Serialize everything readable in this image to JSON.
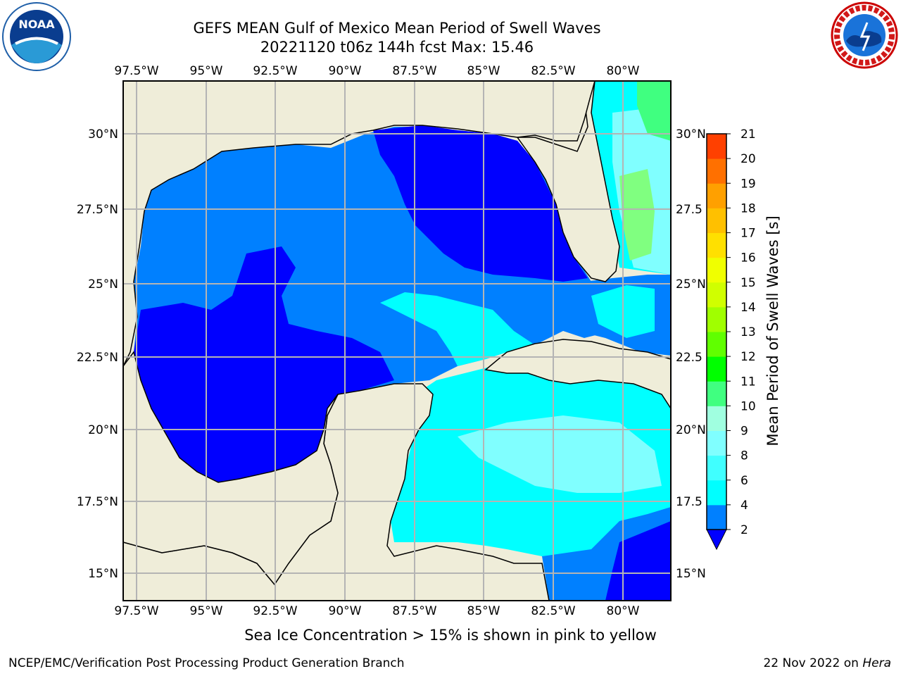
{
  "title": {
    "line1": "GEFS MEAN Gulf of Mexico Mean Period of Swell Waves",
    "line2": "20221120 t06z 144h fcst   Max: 15.46"
  },
  "map": {
    "lon_ticks": [
      "97.5°W",
      "95°W",
      "92.5°W",
      "90°W",
      "87.5°W",
      "85°W",
      "82.5°W",
      "80°W"
    ],
    "lat_ticks_left": [
      "30°N",
      "27.5°N",
      "25°N",
      "22.5°N",
      "20°N",
      "17.5°N",
      "15°N"
    ],
    "lat_ticks_right": [
      "30°N",
      "27.5",
      "25°N",
      "22.5",
      "20°N",
      "17.5",
      "15°N"
    ],
    "colors": {
      "land": "#efedd9",
      "deep": "#0000ff",
      "blue": "#0080ff",
      "cyan": "#00ffff",
      "lightcyan": "#80ffff",
      "green": "#80ff80",
      "grid": "#b4b4b4"
    }
  },
  "colorbar": {
    "label": "Mean Period of Swell Waves [s]",
    "ticks": [
      "2",
      "4",
      "6",
      "8",
      "9",
      "10",
      "11",
      "12",
      "13",
      "14",
      "15",
      "16",
      "17",
      "18",
      "19",
      "20",
      "21"
    ],
    "colors": [
      "#0080ff",
      "#00ffff",
      "#40ffff",
      "#80ffff",
      "#a0ffe0",
      "#40ff80",
      "#00ff00",
      "#60ff00",
      "#a0ff00",
      "#d0ff00",
      "#f0ff00",
      "#ffe000",
      "#ffc000",
      "#ffa000",
      "#ff7000",
      "#ff4000",
      "#ff0000"
    ],
    "extend_color": "#0000ff"
  },
  "subtitle": "Sea Ice Concentration > 15% is shown in pink to yellow",
  "footer": {
    "left": "NCEP/EMC/Verification Post Processing Product Generation Branch",
    "right_date": "22 Nov 2022 on ",
    "right_host": "Hera"
  },
  "logos": {
    "left_text": "NOAA",
    "right_text": "NATIONAL WEATHER SERVICE"
  }
}
